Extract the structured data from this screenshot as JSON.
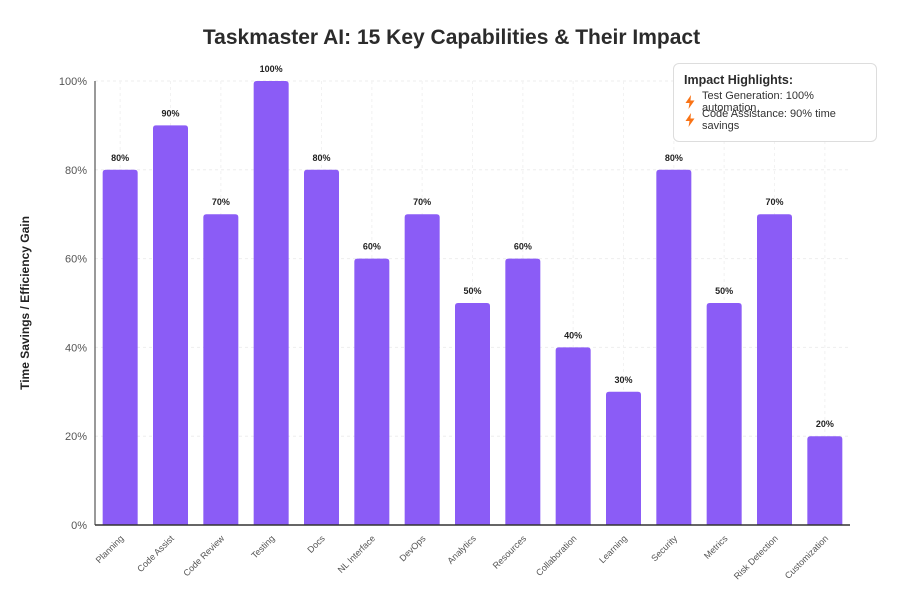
{
  "chart_data": {
    "type": "bar",
    "title": "Taskmaster AI: 15 Key Capabilities & Their Impact",
    "ylabel": "Time Savings / Efficiency Gain",
    "xlabel": "",
    "categories": [
      "Planning",
      "Code Assist",
      "Code Review",
      "Testing",
      "Docs",
      "NL Interface",
      "DevOps",
      "Analytics",
      "Resources",
      "Collaboration",
      "Learning",
      "Security",
      "Metrics",
      "Risk Detection",
      "Customization"
    ],
    "values": [
      80,
      90,
      70,
      100,
      80,
      60,
      70,
      50,
      60,
      40,
      30,
      80,
      50,
      70,
      20
    ],
    "value_labels": [
      "80%",
      "90%",
      "70%",
      "100%",
      "80%",
      "60%",
      "70%",
      "50%",
      "60%",
      "40%",
      "30%",
      "80%",
      "50%",
      "70%",
      "20%"
    ],
    "ylim": [
      0,
      100
    ],
    "yticks": [
      0,
      20,
      40,
      60,
      80,
      100
    ],
    "ytick_labels": [
      "0%",
      "20%",
      "40%",
      "60%",
      "80%",
      "100%"
    ],
    "grid": true,
    "bar_color": "#8b5cf6",
    "legend": {
      "placement": "top-right",
      "title": "Impact Highlights:",
      "items": [
        {
          "icon": "lightning-bolt-icon",
          "text": "Test Generation: 100% automation"
        },
        {
          "icon": "lightning-bolt-icon",
          "text": "Code Assistance: 90% time savings"
        }
      ],
      "icon_color": "#f97316"
    }
  }
}
